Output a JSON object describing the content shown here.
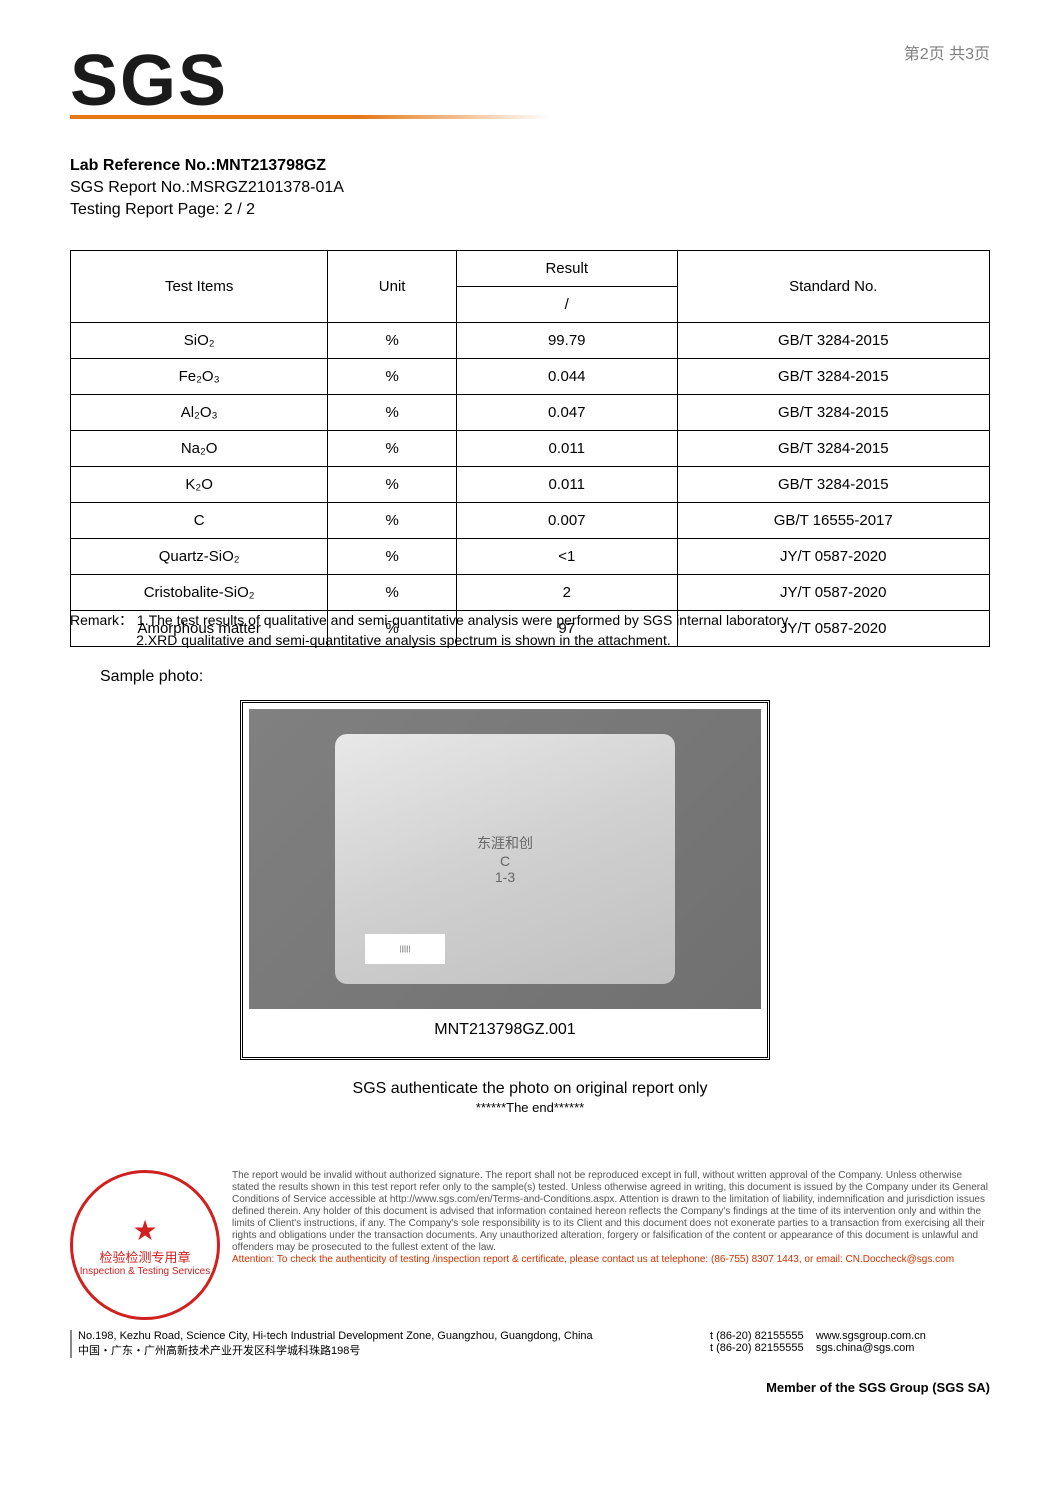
{
  "page_indicator": "第2页 共3页",
  "logo_text": "SGS",
  "header": {
    "lab_ref_label": "Lab Reference No.:",
    "lab_ref_value": "MNT213798GZ",
    "report_no": "SGS Report No.:MSRGZ2101378-01A",
    "page_info": "Testing Report Page: 2 / 2"
  },
  "table": {
    "headers": {
      "items": "Test Items",
      "unit": "Unit",
      "result": "Result",
      "sub": "/",
      "std": "Standard No."
    },
    "rows": [
      {
        "item": "SiO₂",
        "unit": "%",
        "result": "99.79",
        "std": "GB/T 3284-2015"
      },
      {
        "item": "Fe₂O₃",
        "unit": "%",
        "result": "0.044",
        "std": "GB/T 3284-2015"
      },
      {
        "item": "Al₂O₃",
        "unit": "%",
        "result": "0.047",
        "std": "GB/T 3284-2015"
      },
      {
        "item": "Na₂O",
        "unit": "%",
        "result": "0.011",
        "std": "GB/T 3284-2015"
      },
      {
        "item": "K₂O",
        "unit": "%",
        "result": "0.011",
        "std": "GB/T 3284-2015"
      },
      {
        "item": "C",
        "unit": "%",
        "result": "0.007",
        "std": "GB/T 16555-2017"
      },
      {
        "item": "Quartz-SiO₂",
        "unit": "%",
        "result": "<1",
        "std": "JY/T 0587-2020"
      },
      {
        "item": "Cristobalite-SiO₂",
        "unit": "%",
        "result": "2",
        "std": "JY/T 0587-2020"
      },
      {
        "item": "Amorphous matter",
        "unit": "%",
        "result": "97",
        "std": "JY/T 0587-2020"
      }
    ]
  },
  "remarks": {
    "prefix": "Remark：",
    "line1": "1.The test results of qualitative and semi-quantitative analysis were performed by SGS internal laboratory.",
    "line2": "2.XRD qualitative and semi-quantitative analysis spectrum is shown in the attachment."
  },
  "sample_photo_label": "Sample photo:",
  "photo": {
    "caption": "MNT213798GZ.001",
    "bag_cn": "东涯和创",
    "bag_letter": "C",
    "bag_range": "1-3"
  },
  "auth_text": "SGS authenticate the photo on original report only",
  "end_text": "******The end******",
  "seal": {
    "cn": "检验检测专用章",
    "en": "Inspection & Testing Services"
  },
  "disclaimer": {
    "body": "The report would be invalid without authorized signature. The report shall not be reproduced except in full, without written approval of the Company. Unless otherwise stated the results shown in this test report refer only to the sample(s) tested. Unless otherwise agreed in writing, this document is issued by the Company under its General Conditions of Service accessible at http://www.sgs.com/en/Terms-and-Conditions.aspx. Attention is drawn to the limitation of liability, indemnification and jurisdiction issues defined therein. Any holder of this document is advised that information contained hereon reflects the Company's findings at the time of its intervention only and within the limits of Client's instructions, if any. The Company's sole responsibility is to its Client and this document does not exonerate parties to a transaction from exercising all their rights and obligations under the transaction documents. Any unauthorized alteration, forgery or falsification of the content or appearance of this document is unlawful and offenders may be prosecuted to the fullest extent of the law.",
    "attention": "Attention: To check the authenticity of testing /inspection report & certificate, please contact us at telephone: (86-755) 8307 1443, or email: CN.Doccheck@sgs.com"
  },
  "address": {
    "en": "No.198, Kezhu Road, Science City, Hi-tech Industrial Development Zone, Guangzhou, Guangdong, China",
    "cn": "中国・广东・广州高新技术产业开发区科学城科珠路198号",
    "tel1": "t (86-20) 82155555",
    "tel2": "t (86-20) 82155555",
    "web": "www.sgsgroup.com.cn",
    "email": "sgs.china@sgs.com"
  },
  "member": "Member of the SGS Group (SGS SA)"
}
